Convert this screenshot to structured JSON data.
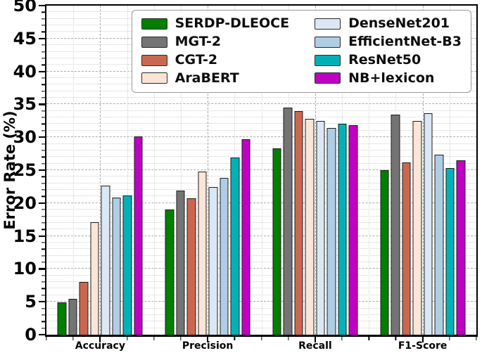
{
  "chart_data": {
    "type": "bar",
    "title": "",
    "xlabel": "",
    "ylabel": "Error Rate (%)",
    "ylim": [
      0,
      50
    ],
    "ytick_step": 5,
    "minor_ytick_step": 1,
    "yticks": [
      "0",
      "5",
      "10",
      "15",
      "20",
      "25",
      "30",
      "35",
      "40",
      "45",
      "50"
    ],
    "categories": [
      "Accuracy",
      "Precision",
      "Recall",
      "F1-Score"
    ],
    "series": [
      {
        "name": "SERDP-DLEOCE",
        "color": "#007F00",
        "values": [
          4.9,
          19.0,
          28.3,
          25.0
        ]
      },
      {
        "name": "MGT-2",
        "color": "#747474",
        "values": [
          5.5,
          21.9,
          34.5,
          33.4
        ]
      },
      {
        "name": "CGT-2",
        "color": "#C9684F",
        "values": [
          8.0,
          20.7,
          34.0,
          26.2
        ]
      },
      {
        "name": "AraBERT",
        "color": "#FAE5D6",
        "values": [
          17.1,
          24.8,
          32.8,
          32.5
        ]
      },
      {
        "name": "DenseNet201",
        "color": "#DBE8F4",
        "values": [
          22.6,
          22.4,
          32.5,
          33.7
        ]
      },
      {
        "name": "EfficientNet-B3",
        "color": "#AFCDE3",
        "values": [
          20.8,
          23.8,
          31.4,
          27.4
        ]
      },
      {
        "name": "ResNet50",
        "color": "#00B2B8",
        "values": [
          21.2,
          26.9,
          32.0,
          25.3
        ]
      },
      {
        "name": "NB+lexicon",
        "color": "#C000C4",
        "values": [
          30.1,
          29.7,
          31.8,
          26.5
        ]
      }
    ],
    "bar_edge_color": "#1c1c1c",
    "grid": {
      "major": "dashed",
      "minor": "dotted"
    },
    "legend_position": "upper-right",
    "legend_columns": 2
  }
}
